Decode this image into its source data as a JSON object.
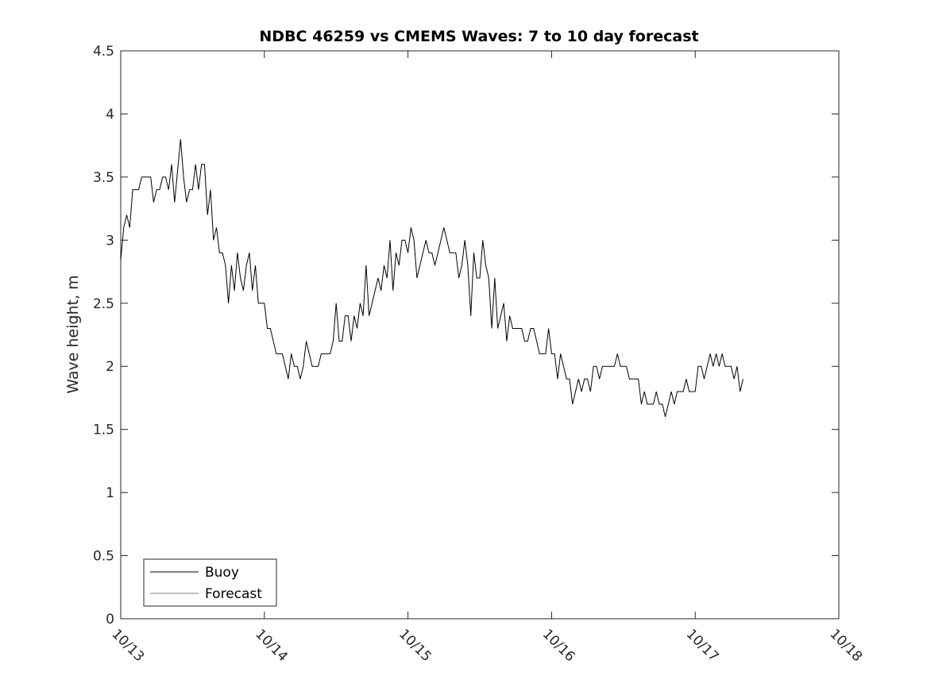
{
  "chart_data": {
    "type": "line",
    "title": "NDBC 46259 vs CMEMS Waves: 7 to 10 day forecast",
    "xlabel": "",
    "ylabel": "Wave height, m",
    "xlim_days": [
      0,
      5
    ],
    "x_tick_labels": [
      "10/13",
      "10/14",
      "10/15",
      "10/16",
      "10/17",
      "10/18"
    ],
    "ylim": [
      0,
      4.5
    ],
    "y_ticks": [
      0,
      0.5,
      1,
      1.5,
      2,
      2.5,
      3,
      3.5,
      4,
      4.5
    ],
    "y_tick_labels": [
      "0",
      "0.5",
      "1",
      "1.5",
      "2",
      "2.5",
      "3",
      "3.5",
      "4",
      "4.5"
    ],
    "grid": false,
    "legend_position": "bottom-left",
    "series": [
      {
        "name": "Buoy",
        "color": "#000000",
        "x_start_day": 0,
        "x_step_hours": 0.5,
        "values": [
          2.84,
          3.1,
          3.2,
          3.1,
          3.4,
          3.4,
          3.4,
          3.5,
          3.5,
          3.5,
          3.5,
          3.3,
          3.4,
          3.4,
          3.5,
          3.5,
          3.4,
          3.6,
          3.3,
          3.55,
          3.8,
          3.5,
          3.3,
          3.4,
          3.4,
          3.6,
          3.4,
          3.6,
          3.6,
          3.2,
          3.4,
          3.0,
          3.1,
          2.9,
          2.9,
          2.8,
          2.5,
          2.8,
          2.6,
          2.9,
          2.7,
          2.6,
          2.8,
          2.9,
          2.6,
          2.8,
          2.5,
          2.5,
          2.5,
          2.3,
          2.3,
          2.2,
          2.1,
          2.1,
          2.1,
          2.0,
          1.9,
          2.1,
          2.0,
          2.0,
          1.9,
          2.0,
          2.2,
          2.1,
          2.0,
          2.0,
          2.0,
          2.1,
          2.1,
          2.1,
          2.1,
          2.2,
          2.5,
          2.2,
          2.2,
          2.4,
          2.4,
          2.2,
          2.4,
          2.3,
          2.5,
          2.4,
          2.8,
          2.4,
          2.5,
          2.6,
          2.7,
          2.6,
          2.8,
          2.7,
          3.0,
          2.6,
          2.9,
          2.8,
          3.0,
          3.0,
          2.9,
          3.1,
          3.0,
          2.7,
          2.8,
          2.9,
          3.0,
          2.9,
          2.9,
          2.8,
          2.9,
          3.0,
          3.1,
          3.0,
          2.9,
          2.9,
          2.9,
          2.7,
          2.8,
          3.0,
          2.8,
          2.4,
          2.9,
          2.7,
          2.7,
          3.0,
          2.8,
          2.7,
          2.3,
          2.7,
          2.3,
          2.4,
          2.5,
          2.2,
          2.4,
          2.3,
          2.3,
          2.3,
          2.3,
          2.2,
          2.2,
          2.3,
          2.3,
          2.2,
          2.1,
          2.1,
          2.1,
          2.3,
          2.1,
          2.1,
          1.9,
          2.1,
          2.0,
          1.9,
          1.9,
          1.7,
          1.8,
          1.9,
          1.8,
          1.9,
          1.9,
          1.8,
          2.0,
          2.0,
          1.9,
          2.0,
          2.0,
          2.0,
          2.0,
          2.0,
          2.1,
          2.0,
          2.0,
          2.0,
          1.9,
          1.9,
          1.9,
          1.9,
          1.7,
          1.8,
          1.7,
          1.7,
          1.7,
          1.8,
          1.7,
          1.7,
          1.6,
          1.7,
          1.8,
          1.7,
          1.8,
          1.8,
          1.8,
          1.9,
          1.8,
          1.8,
          1.8,
          2.0,
          2.0,
          1.9,
          2.0,
          2.1,
          2.0,
          2.1,
          2.0,
          2.1,
          2.0,
          2.0,
          2.0,
          1.9,
          2.0,
          1.8,
          1.9
        ]
      },
      {
        "name": "Forecast",
        "color": "#808080",
        "values": []
      }
    ]
  }
}
